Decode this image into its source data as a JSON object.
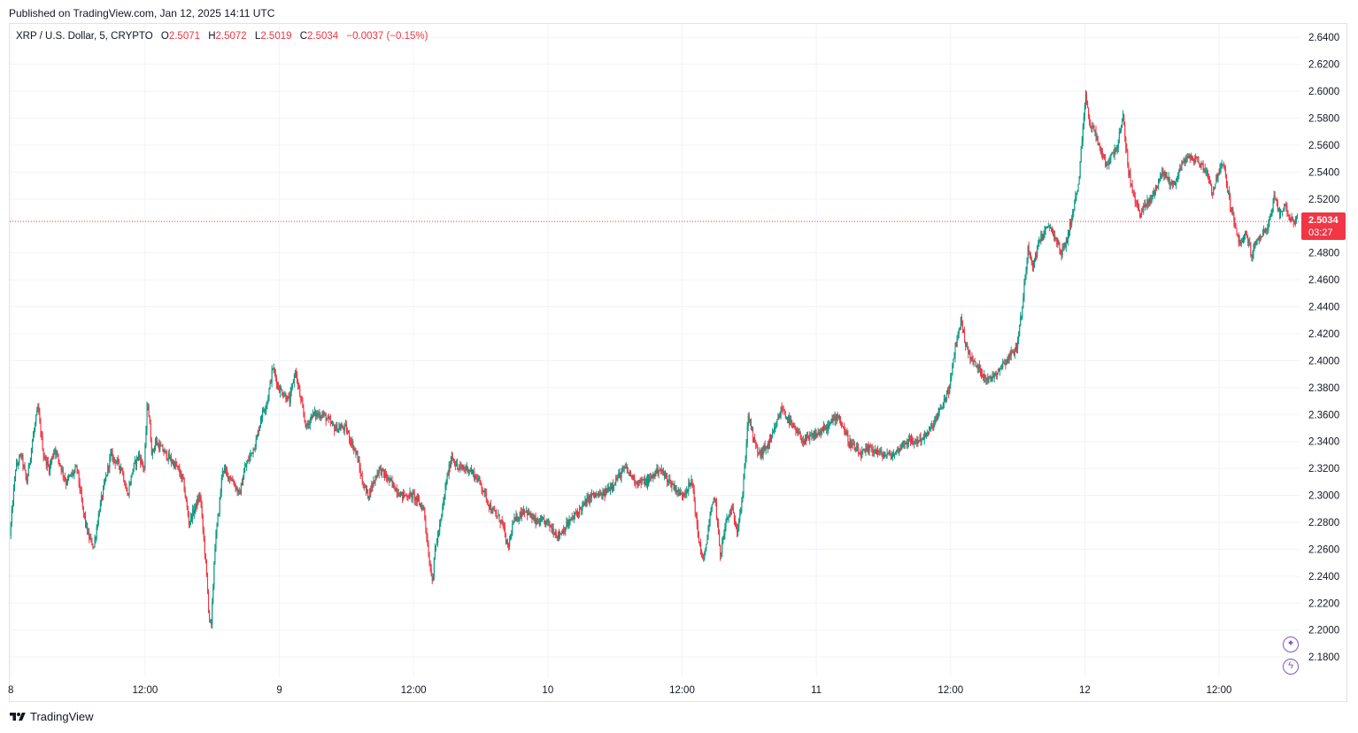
{
  "header": {
    "published": "Published on TradingView.com, Jan 12, 2025 14:11 UTC"
  },
  "legend": {
    "symbol": "XRP / U.S. Dollar, 5, CRYPTO",
    "open_label": "O",
    "open": "2.5071",
    "high_label": "H",
    "high": "2.5072",
    "low_label": "L",
    "low": "2.5019",
    "close_label": "C",
    "close": "2.5034",
    "change": "−0.0037 (−0.15%)"
  },
  "price_badge": {
    "price": "2.5034",
    "countdown": "03:27"
  },
  "footer": {
    "brand": "TradingView",
    "logo_icon": "tradingview-logo-icon"
  },
  "side_buttons": [
    {
      "icon": "sparkle-icon",
      "glyph": "✦"
    },
    {
      "icon": "lightning-icon",
      "glyph": "ϟ"
    }
  ],
  "colors": {
    "up": "#089981",
    "down": "#f23645",
    "grid": "#f0f3fa",
    "last_price_line": "#f23645"
  },
  "chart_data": {
    "type": "candlestick",
    "symbol": "XRP / U.S. Dollar",
    "interval": "5",
    "ylim": [
      2.165,
      2.65
    ],
    "y_ticks": [
      "2.6400",
      "2.6200",
      "2.6000",
      "2.5800",
      "2.5600",
      "2.5400",
      "2.5200",
      "2.4800",
      "2.4600",
      "2.4400",
      "2.4200",
      "2.4000",
      "2.3800",
      "2.3600",
      "2.3400",
      "2.3200",
      "2.3000",
      "2.2800",
      "2.2600",
      "2.2400",
      "2.2200",
      "2.2000",
      "2.1800"
    ],
    "x_ticks": [
      {
        "label": "8",
        "t": 0
      },
      {
        "label": "12:00",
        "t": 12
      },
      {
        "label": "9",
        "t": 24
      },
      {
        "label": "12:00",
        "t": 36
      },
      {
        "label": "10",
        "t": 48
      },
      {
        "label": "12:00",
        "t": 60
      },
      {
        "label": "11",
        "t": 72
      },
      {
        "label": "12:00",
        "t": 84
      },
      {
        "label": "12",
        "t": 96
      },
      {
        "label": "12:00",
        "t": 108
      }
    ],
    "xlim_hours": [
      -0.1,
      115.2
    ],
    "last_price": 2.5034,
    "price_path": [
      [
        0,
        2.27
      ],
      [
        0.5,
        2.32
      ],
      [
        1,
        2.33
      ],
      [
        1.5,
        2.31
      ],
      [
        2,
        2.34
      ],
      [
        2.5,
        2.365
      ],
      [
        3,
        2.33
      ],
      [
        3.5,
        2.32
      ],
      [
        4,
        2.335
      ],
      [
        5,
        2.31
      ],
      [
        6,
        2.32
      ],
      [
        6.5,
        2.29
      ],
      [
        7,
        2.27
      ],
      [
        7.5,
        2.262
      ],
      [
        8,
        2.29
      ],
      [
        8.5,
        2.31
      ],
      [
        9,
        2.33
      ],
      [
        10,
        2.32
      ],
      [
        10.5,
        2.3
      ],
      [
        11,
        2.32
      ],
      [
        11.5,
        2.33
      ],
      [
        12,
        2.32
      ],
      [
        12.3,
        2.372
      ],
      [
        12.7,
        2.33
      ],
      [
        13,
        2.34
      ],
      [
        14,
        2.33
      ],
      [
        15,
        2.32
      ],
      [
        15.5,
        2.31
      ],
      [
        16,
        2.28
      ],
      [
        16.5,
        2.29
      ],
      [
        17,
        2.3
      ],
      [
        17.5,
        2.25
      ],
      [
        17.8,
        2.21
      ],
      [
        18,
        2.202
      ],
      [
        18.3,
        2.26
      ],
      [
        18.8,
        2.3
      ],
      [
        19,
        2.32
      ],
      [
        20,
        2.31
      ],
      [
        20.5,
        2.3
      ],
      [
        21,
        2.32
      ],
      [
        22,
        2.34
      ],
      [
        22.5,
        2.36
      ],
      [
        23,
        2.37
      ],
      [
        23.5,
        2.395
      ],
      [
        24,
        2.38
      ],
      [
        25,
        2.37
      ],
      [
        25.5,
        2.393
      ],
      [
        26,
        2.37
      ],
      [
        26.5,
        2.35
      ],
      [
        27,
        2.36
      ],
      [
        28,
        2.36
      ],
      [
        29,
        2.35
      ],
      [
        30,
        2.35
      ],
      [
        31,
        2.33
      ],
      [
        31.5,
        2.31
      ],
      [
        32,
        2.3
      ],
      [
        33,
        2.32
      ],
      [
        34,
        2.31
      ],
      [
        35,
        2.3
      ],
      [
        36,
        2.3
      ],
      [
        37,
        2.29
      ],
      [
        37.5,
        2.25
      ],
      [
        37.8,
        2.237
      ],
      [
        38,
        2.26
      ],
      [
        38.5,
        2.28
      ],
      [
        39,
        2.31
      ],
      [
        39.5,
        2.33
      ],
      [
        40,
        2.32
      ],
      [
        41,
        2.32
      ],
      [
        42,
        2.31
      ],
      [
        43,
        2.29
      ],
      [
        44,
        2.28
      ],
      [
        44.5,
        2.26
      ],
      [
        45,
        2.28
      ],
      [
        46,
        2.29
      ],
      [
        47,
        2.28
      ],
      [
        48,
        2.28
      ],
      [
        49,
        2.27
      ],
      [
        50,
        2.28
      ],
      [
        51,
        2.29
      ],
      [
        52,
        2.3
      ],
      [
        53,
        2.3
      ],
      [
        54,
        2.31
      ],
      [
        55,
        2.32
      ],
      [
        56,
        2.31
      ],
      [
        57,
        2.31
      ],
      [
        58,
        2.32
      ],
      [
        59,
        2.31
      ],
      [
        60,
        2.3
      ],
      [
        61,
        2.31
      ],
      [
        61.5,
        2.27
      ],
      [
        62,
        2.25
      ],
      [
        62.5,
        2.28
      ],
      [
        63,
        2.3
      ],
      [
        63.5,
        2.256
      ],
      [
        64,
        2.28
      ],
      [
        64.5,
        2.29
      ],
      [
        65,
        2.275
      ],
      [
        65.5,
        2.3
      ],
      [
        66,
        2.36
      ],
      [
        66.5,
        2.34
      ],
      [
        67,
        2.33
      ],
      [
        68,
        2.34
      ],
      [
        69,
        2.365
      ],
      [
        70,
        2.35
      ],
      [
        71,
        2.34
      ],
      [
        72,
        2.345
      ],
      [
        73,
        2.35
      ],
      [
        74,
        2.36
      ],
      [
        75,
        2.34
      ],
      [
        76,
        2.33
      ],
      [
        77,
        2.335
      ],
      [
        78,
        2.33
      ],
      [
        79,
        2.33
      ],
      [
        80,
        2.34
      ],
      [
        81,
        2.34
      ],
      [
        82,
        2.345
      ],
      [
        83,
        2.36
      ],
      [
        84,
        2.38
      ],
      [
        84.5,
        2.41
      ],
      [
        85,
        2.43
      ],
      [
        85.5,
        2.41
      ],
      [
        86,
        2.4
      ],
      [
        87,
        2.39
      ],
      [
        87.5,
        2.385
      ],
      [
        88,
        2.39
      ],
      [
        89,
        2.4
      ],
      [
        90,
        2.41
      ],
      [
        90.5,
        2.44
      ],
      [
        91,
        2.485
      ],
      [
        91.5,
        2.47
      ],
      [
        92,
        2.49
      ],
      [
        93,
        2.5
      ],
      [
        94,
        2.48
      ],
      [
        94.5,
        2.49
      ],
      [
        95,
        2.51
      ],
      [
        95.5,
        2.53
      ],
      [
        95.8,
        2.56
      ],
      [
        96.2,
        2.598
      ],
      [
        96.5,
        2.575
      ],
      [
        97,
        2.57
      ],
      [
        97.5,
        2.555
      ],
      [
        98,
        2.545
      ],
      [
        99,
        2.56
      ],
      [
        99.5,
        2.58
      ],
      [
        100,
        2.54
      ],
      [
        100.5,
        2.52
      ],
      [
        101,
        2.51
      ],
      [
        102,
        2.52
      ],
      [
        103,
        2.54
      ],
      [
        104,
        2.53
      ],
      [
        105,
        2.55
      ],
      [
        106,
        2.55
      ],
      [
        107,
        2.54
      ],
      [
        107.5,
        2.525
      ],
      [
        108,
        2.54
      ],
      [
        108.5,
        2.545
      ],
      [
        109,
        2.52
      ],
      [
        109.5,
        2.5
      ],
      [
        110,
        2.485
      ],
      [
        110.5,
        2.495
      ],
      [
        111,
        2.478
      ],
      [
        111.5,
        2.49
      ],
      [
        112,
        2.495
      ],
      [
        112.5,
        2.5
      ],
      [
        113,
        2.52
      ],
      [
        113.5,
        2.51
      ],
      [
        114,
        2.515
      ],
      [
        114.5,
        2.505
      ],
      [
        115,
        2.5034
      ]
    ]
  }
}
